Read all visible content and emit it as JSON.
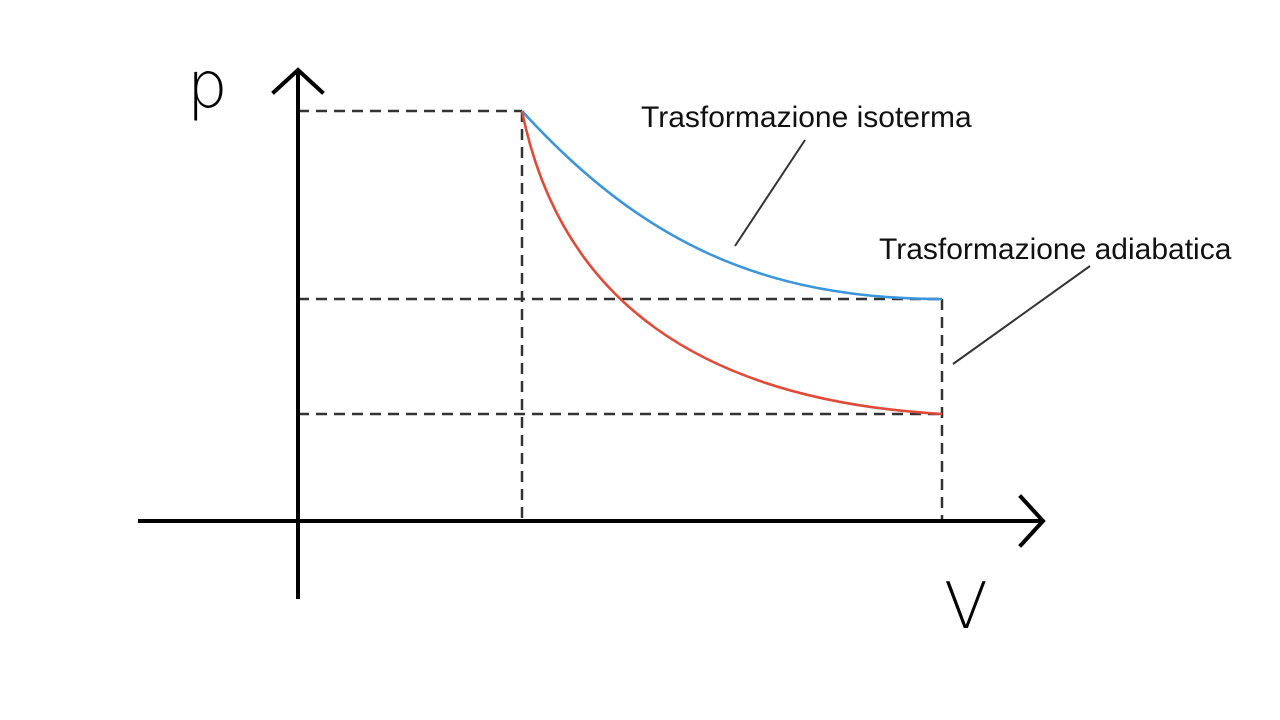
{
  "diagram": {
    "axes": {
      "y_label": "p",
      "x_label": "V"
    },
    "labels": {
      "isotherm": "Trasformazione isoterma",
      "adiabatic": "Trasformazione adiabatica"
    },
    "colors": {
      "axis": "#000000",
      "guide": "#333333",
      "leader": "#333333",
      "isotherm": "#3a96d8",
      "adiabatic": "#e04a38"
    }
  }
}
